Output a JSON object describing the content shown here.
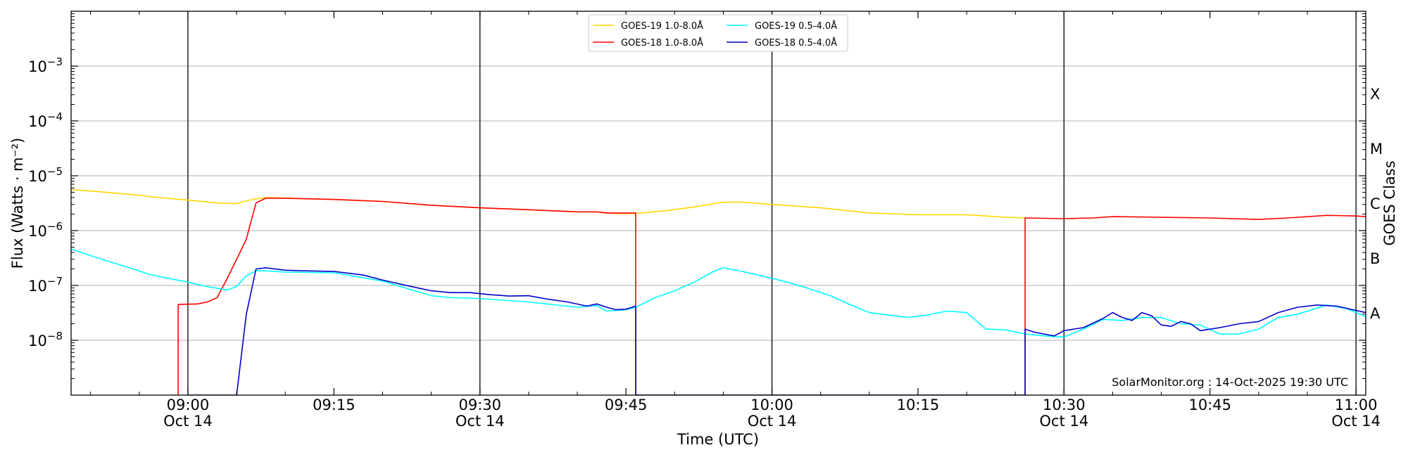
{
  "chart_data": {
    "type": "line",
    "xlabel": "Time (UTC)",
    "ylabel": "Flux (Watts · m⁻²)",
    "y2label": "GOES Class",
    "yscale": "log",
    "ylim": [
      1e-09,
      0.01
    ],
    "xlim": [
      "08:48",
      "11:01"
    ],
    "grid": "horizontal",
    "legend_position": "top-center",
    "watermark": "SolarMonitor.org : 14-Oct-2025 19:30 UTC",
    "vertical_lines": [
      "09:00",
      "09:30",
      "10:00",
      "10:30",
      "11:00"
    ],
    "x_ticks": [
      {
        "time": "09:00",
        "label": "09:00",
        "date": "Oct 14"
      },
      {
        "time": "09:15",
        "label": "09:15",
        "date": ""
      },
      {
        "time": "09:30",
        "label": "09:30",
        "date": "Oct 14"
      },
      {
        "time": "09:45",
        "label": "09:45",
        "date": ""
      },
      {
        "time": "10:00",
        "label": "10:00",
        "date": "Oct 14"
      },
      {
        "time": "10:15",
        "label": "10:15",
        "date": ""
      },
      {
        "time": "10:30",
        "label": "10:30",
        "date": "Oct 14"
      },
      {
        "time": "10:45",
        "label": "10:45",
        "date": ""
      },
      {
        "time": "11:00",
        "label": "11:00",
        "date": "Oct 14"
      }
    ],
    "y_ticks": [
      {
        "exp": -8,
        "label": "10",
        "sup": "−8"
      },
      {
        "exp": -7,
        "label": "10",
        "sup": "−7"
      },
      {
        "exp": -6,
        "label": "10",
        "sup": "−6"
      },
      {
        "exp": -5,
        "label": "10",
        "sup": "−5"
      },
      {
        "exp": -4,
        "label": "10",
        "sup": "−4"
      },
      {
        "exp": -3,
        "label": "10",
        "sup": "−3"
      }
    ],
    "class_labels": [
      {
        "label": "A",
        "exp": -7.5
      },
      {
        "label": "B",
        "exp": -6.5
      },
      {
        "label": "C",
        "exp": -5.5
      },
      {
        "label": "M",
        "exp": -4.5
      },
      {
        "label": "X",
        "exp": -3.5
      }
    ],
    "series": [
      {
        "name": "GOES-19 1.0-8.0Å",
        "color": "#ffd700",
        "points": [
          [
            "08:48",
            5.6e-06
          ],
          [
            "08:51",
            5.1e-06
          ],
          [
            "08:54",
            4.6e-06
          ],
          [
            "08:57",
            4e-06
          ],
          [
            "09:00",
            3.6e-06
          ],
          [
            "09:03",
            3.2e-06
          ],
          [
            "09:05",
            3.1e-06
          ],
          [
            "09:06",
            3.5e-06
          ],
          [
            "09:07",
            3.8e-06
          ],
          [
            "09:08",
            4e-06
          ],
          [
            "09:15",
            3.7e-06
          ],
          [
            "09:20",
            3.4e-06
          ],
          [
            "09:25",
            2.9e-06
          ],
          [
            "09:30",
            2.6e-06
          ],
          [
            "09:35",
            2.4e-06
          ],
          [
            "09:40",
            2.2e-06
          ],
          [
            "09:42",
            2.2e-06
          ],
          [
            "09:44",
            2.05e-06
          ],
          [
            "09:46",
            2.05e-06
          ],
          [
            "09:49",
            2.3e-06
          ],
          [
            "09:52",
            2.7e-06
          ],
          [
            "09:54",
            3.1e-06
          ],
          [
            "09:55",
            3.3e-06
          ],
          [
            "09:57",
            3.3e-06
          ],
          [
            "10:00",
            3e-06
          ],
          [
            "10:05",
            2.6e-06
          ],
          [
            "10:10",
            2.1e-06
          ],
          [
            "10:15",
            1.95e-06
          ],
          [
            "10:20",
            1.95e-06
          ],
          [
            "10:24",
            1.75e-06
          ],
          [
            "10:26",
            1.7e-06
          ]
        ]
      },
      {
        "name": "GOES-18 1.0-8.0Å",
        "color": "#ff0000",
        "points": [
          [
            "08:59",
            1e-09
          ],
          [
            "08:59",
            4.5e-08
          ],
          [
            "09:01",
            4.6e-08
          ],
          [
            "09:02",
            5e-08
          ],
          [
            "09:03",
            6e-08
          ],
          [
            "09:04",
            1.3e-07
          ],
          [
            "09:05",
            3e-07
          ],
          [
            "09:06",
            7e-07
          ],
          [
            "09:07",
            3.2e-06
          ],
          [
            "09:08",
            3.9e-06
          ],
          [
            "09:10",
            3.9e-06
          ],
          [
            "09:15",
            3.7e-06
          ],
          [
            "09:20",
            3.4e-06
          ],
          [
            "09:25",
            2.9e-06
          ],
          [
            "09:30",
            2.6e-06
          ],
          [
            "09:35",
            2.4e-06
          ],
          [
            "09:40",
            2.2e-06
          ],
          [
            "09:42",
            2.2e-06
          ],
          [
            "09:43",
            2.1e-06
          ],
          [
            "09:46",
            2.1e-06
          ],
          [
            "09:46",
            1e-09
          ],
          [
            "10:26",
            1e-09
          ],
          [
            "10:26",
            1.7e-06
          ],
          [
            "10:30",
            1.65e-06
          ],
          [
            "10:33",
            1.7e-06
          ],
          [
            "10:35",
            1.8e-06
          ],
          [
            "10:40",
            1.75e-06
          ],
          [
            "10:45",
            1.7e-06
          ],
          [
            "10:50",
            1.6e-06
          ],
          [
            "10:53",
            1.7e-06
          ],
          [
            "10:57",
            1.9e-06
          ],
          [
            "11:00",
            1.85e-06
          ],
          [
            "11:01",
            1.8e-06
          ]
        ]
      },
      {
        "name": "GOES-19 0.5-4.0Å",
        "color": "#00ffff",
        "points": [
          [
            "08:48",
            4.6e-07
          ],
          [
            "08:50",
            3.5e-07
          ],
          [
            "08:52",
            2.7e-07
          ],
          [
            "08:54",
            2.1e-07
          ],
          [
            "08:56",
            1.6e-07
          ],
          [
            "08:58",
            1.35e-07
          ],
          [
            "09:00",
            1.15e-07
          ],
          [
            "09:02",
            9.5e-08
          ],
          [
            "09:04",
            8.3e-08
          ],
          [
            "09:05",
            9.5e-08
          ],
          [
            "09:06",
            1.5e-07
          ],
          [
            "09:07",
            1.85e-07
          ],
          [
            "09:08",
            1.85e-07
          ],
          [
            "09:10",
            1.75e-07
          ],
          [
            "09:15",
            1.7e-07
          ],
          [
            "09:20",
            1.2e-07
          ],
          [
            "09:25",
            6.5e-08
          ],
          [
            "09:27",
            6e-08
          ],
          [
            "09:30",
            5.8e-08
          ],
          [
            "09:35",
            5e-08
          ],
          [
            "09:40",
            4e-08
          ],
          [
            "09:42",
            4.3e-08
          ],
          [
            "09:43",
            3.4e-08
          ],
          [
            "09:45",
            3.6e-08
          ],
          [
            "09:46",
            4e-08
          ],
          [
            "09:48",
            6e-08
          ],
          [
            "09:50",
            8e-08
          ],
          [
            "09:52",
            1.15e-07
          ],
          [
            "09:54",
            1.8e-07
          ],
          [
            "09:55",
            2.1e-07
          ],
          [
            "09:57",
            1.8e-07
          ],
          [
            "10:00",
            1.35e-07
          ],
          [
            "10:02",
            1.1e-07
          ],
          [
            "10:04",
            8.5e-08
          ],
          [
            "10:06",
            6.5e-08
          ],
          [
            "10:08",
            4.5e-08
          ],
          [
            "10:10",
            3.2e-08
          ],
          [
            "10:14",
            2.6e-08
          ],
          [
            "10:16",
            2.9e-08
          ],
          [
            "10:18",
            3.4e-08
          ],
          [
            "10:20",
            3.2e-08
          ],
          [
            "10:22",
            1.6e-08
          ],
          [
            "10:24",
            1.55e-08
          ],
          [
            "10:26",
            1.3e-08
          ],
          [
            "10:28",
            1.2e-08
          ],
          [
            "10:30",
            1.15e-08
          ],
          [
            "10:32",
            1.6e-08
          ],
          [
            "10:34",
            2.4e-08
          ],
          [
            "10:36",
            2.3e-08
          ],
          [
            "10:38",
            2.6e-08
          ],
          [
            "10:40",
            2.6e-08
          ],
          [
            "10:42",
            2e-08
          ],
          [
            "10:44",
            1.9e-08
          ],
          [
            "10:46",
            1.3e-08
          ],
          [
            "10:48",
            1.3e-08
          ],
          [
            "10:50",
            1.6e-08
          ],
          [
            "10:52",
            2.6e-08
          ],
          [
            "10:54",
            3e-08
          ],
          [
            "10:57",
            4.4e-08
          ],
          [
            "10:59",
            3.8e-08
          ],
          [
            "11:01",
            2.7e-08
          ]
        ]
      },
      {
        "name": "GOES-18 0.5-4.0Å",
        "color": "#0000cd",
        "points": [
          [
            "09:00",
            1e-09
          ],
          [
            "09:05",
            1e-09
          ],
          [
            "09:06",
            3e-08
          ],
          [
            "09:07",
            2e-07
          ],
          [
            "09:08",
            2.1e-07
          ],
          [
            "09:10",
            1.9e-07
          ],
          [
            "09:12",
            1.85e-07
          ],
          [
            "09:15",
            1.8e-07
          ],
          [
            "09:18",
            1.55e-07
          ],
          [
            "09:20",
            1.25e-07
          ],
          [
            "09:23",
            9.5e-08
          ],
          [
            "09:25",
            8e-08
          ],
          [
            "09:27",
            7.4e-08
          ],
          [
            "09:29",
            7.4e-08
          ],
          [
            "09:31",
            6.8e-08
          ],
          [
            "09:33",
            6.4e-08
          ],
          [
            "09:35",
            6.5e-08
          ],
          [
            "09:37",
            5.6e-08
          ],
          [
            "09:39",
            5e-08
          ],
          [
            "09:41",
            4.2e-08
          ],
          [
            "09:42",
            4.6e-08
          ],
          [
            "09:43",
            4e-08
          ],
          [
            "09:44",
            3.6e-08
          ],
          [
            "09:45",
            3.7e-08
          ],
          [
            "09:46",
            4.2e-08
          ],
          [
            "09:46",
            1e-09
          ],
          [
            "10:26",
            1e-09
          ],
          [
            "10:26",
            1.6e-08
          ],
          [
            "10:27",
            1.4e-08
          ],
          [
            "10:29",
            1.2e-08
          ],
          [
            "10:30",
            1.5e-08
          ],
          [
            "10:32",
            1.7e-08
          ],
          [
            "10:34",
            2.5e-08
          ],
          [
            "10:35",
            3.2e-08
          ],
          [
            "10:36",
            2.6e-08
          ],
          [
            "10:37",
            2.3e-08
          ],
          [
            "10:38",
            3.2e-08
          ],
          [
            "10:39",
            2.8e-08
          ],
          [
            "10:40",
            1.9e-08
          ],
          [
            "10:41",
            1.8e-08
          ],
          [
            "10:42",
            2.2e-08
          ],
          [
            "10:43",
            2e-08
          ],
          [
            "10:44",
            1.5e-08
          ],
          [
            "10:46",
            1.7e-08
          ],
          [
            "10:48",
            2e-08
          ],
          [
            "10:50",
            2.2e-08
          ],
          [
            "10:52",
            3.2e-08
          ],
          [
            "10:54",
            4e-08
          ],
          [
            "10:56",
            4.4e-08
          ],
          [
            "10:58",
            4.2e-08
          ],
          [
            "11:01",
            3.2e-08
          ]
        ]
      }
    ]
  }
}
